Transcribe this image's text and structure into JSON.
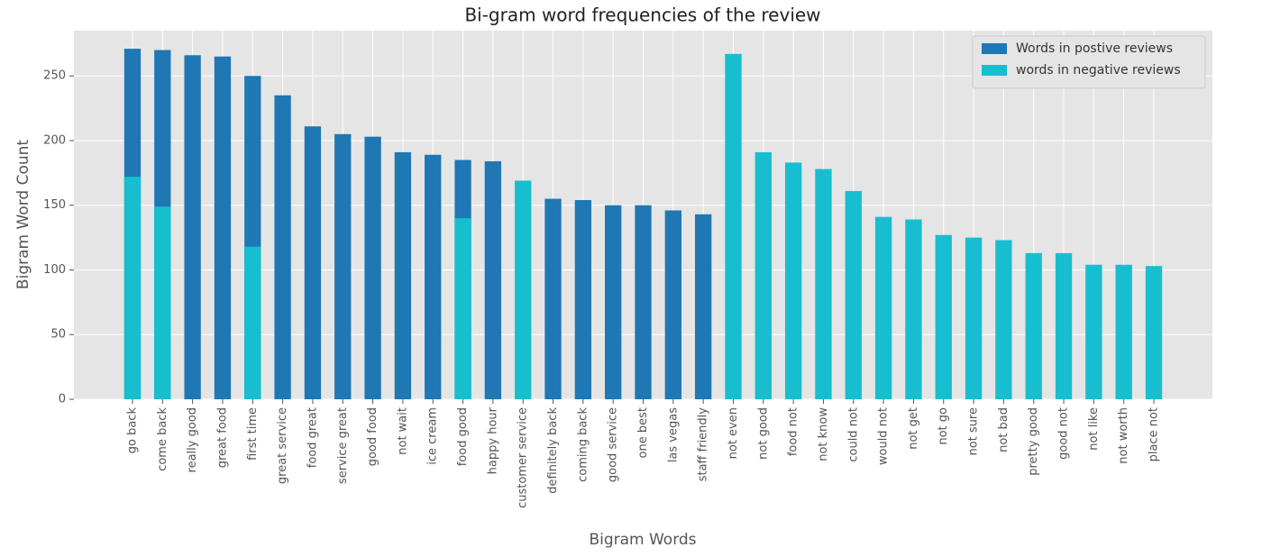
{
  "chart_data": {
    "type": "bar",
    "title": "Bi-gram word frequencies of the review",
    "x_label": "Bigram Words",
    "y_label": "Bigram Word Count",
    "categories": [
      "go back",
      "come back",
      "really good",
      "great food",
      "first time",
      "great service",
      "food great",
      "service great",
      "good food",
      "not wait",
      "ice cream",
      "food good",
      "happy hour",
      "customer service",
      "definitely back",
      "coming back",
      "good service",
      "one best",
      "las vegas",
      "staff friendly",
      "not even",
      "not good",
      "food not",
      "not know",
      "could not",
      "would not",
      "not get",
      "not go",
      "not sure",
      "not bad",
      "pretty good",
      "good not",
      "not like",
      "not worth",
      "place not"
    ],
    "series": [
      {
        "name": "Words in postive reviews",
        "color": "#1f77b4",
        "values": [
          271,
          270,
          266,
          265,
          250,
          235,
          211,
          205,
          203,
          191,
          189,
          185,
          184,
          null,
          155,
          154,
          150,
          150,
          146,
          143,
          null,
          null,
          null,
          null,
          null,
          null,
          null,
          null,
          null,
          null,
          null,
          null,
          null,
          null,
          null
        ]
      },
      {
        "name": "words in negative reviews",
        "color": "#17becf",
        "values": [
          172,
          149,
          null,
          null,
          118,
          null,
          null,
          null,
          null,
          null,
          null,
          140,
          null,
          169,
          null,
          null,
          null,
          null,
          null,
          null,
          267,
          191,
          183,
          178,
          161,
          141,
          139,
          127,
          125,
          123,
          113,
          113,
          104,
          104,
          103
        ]
      }
    ],
    "ylim": [
      0,
      285
    ],
    "yticks": [
      0,
      50,
      100,
      150,
      200,
      250
    ],
    "grid": true,
    "legend": "upper right"
  }
}
